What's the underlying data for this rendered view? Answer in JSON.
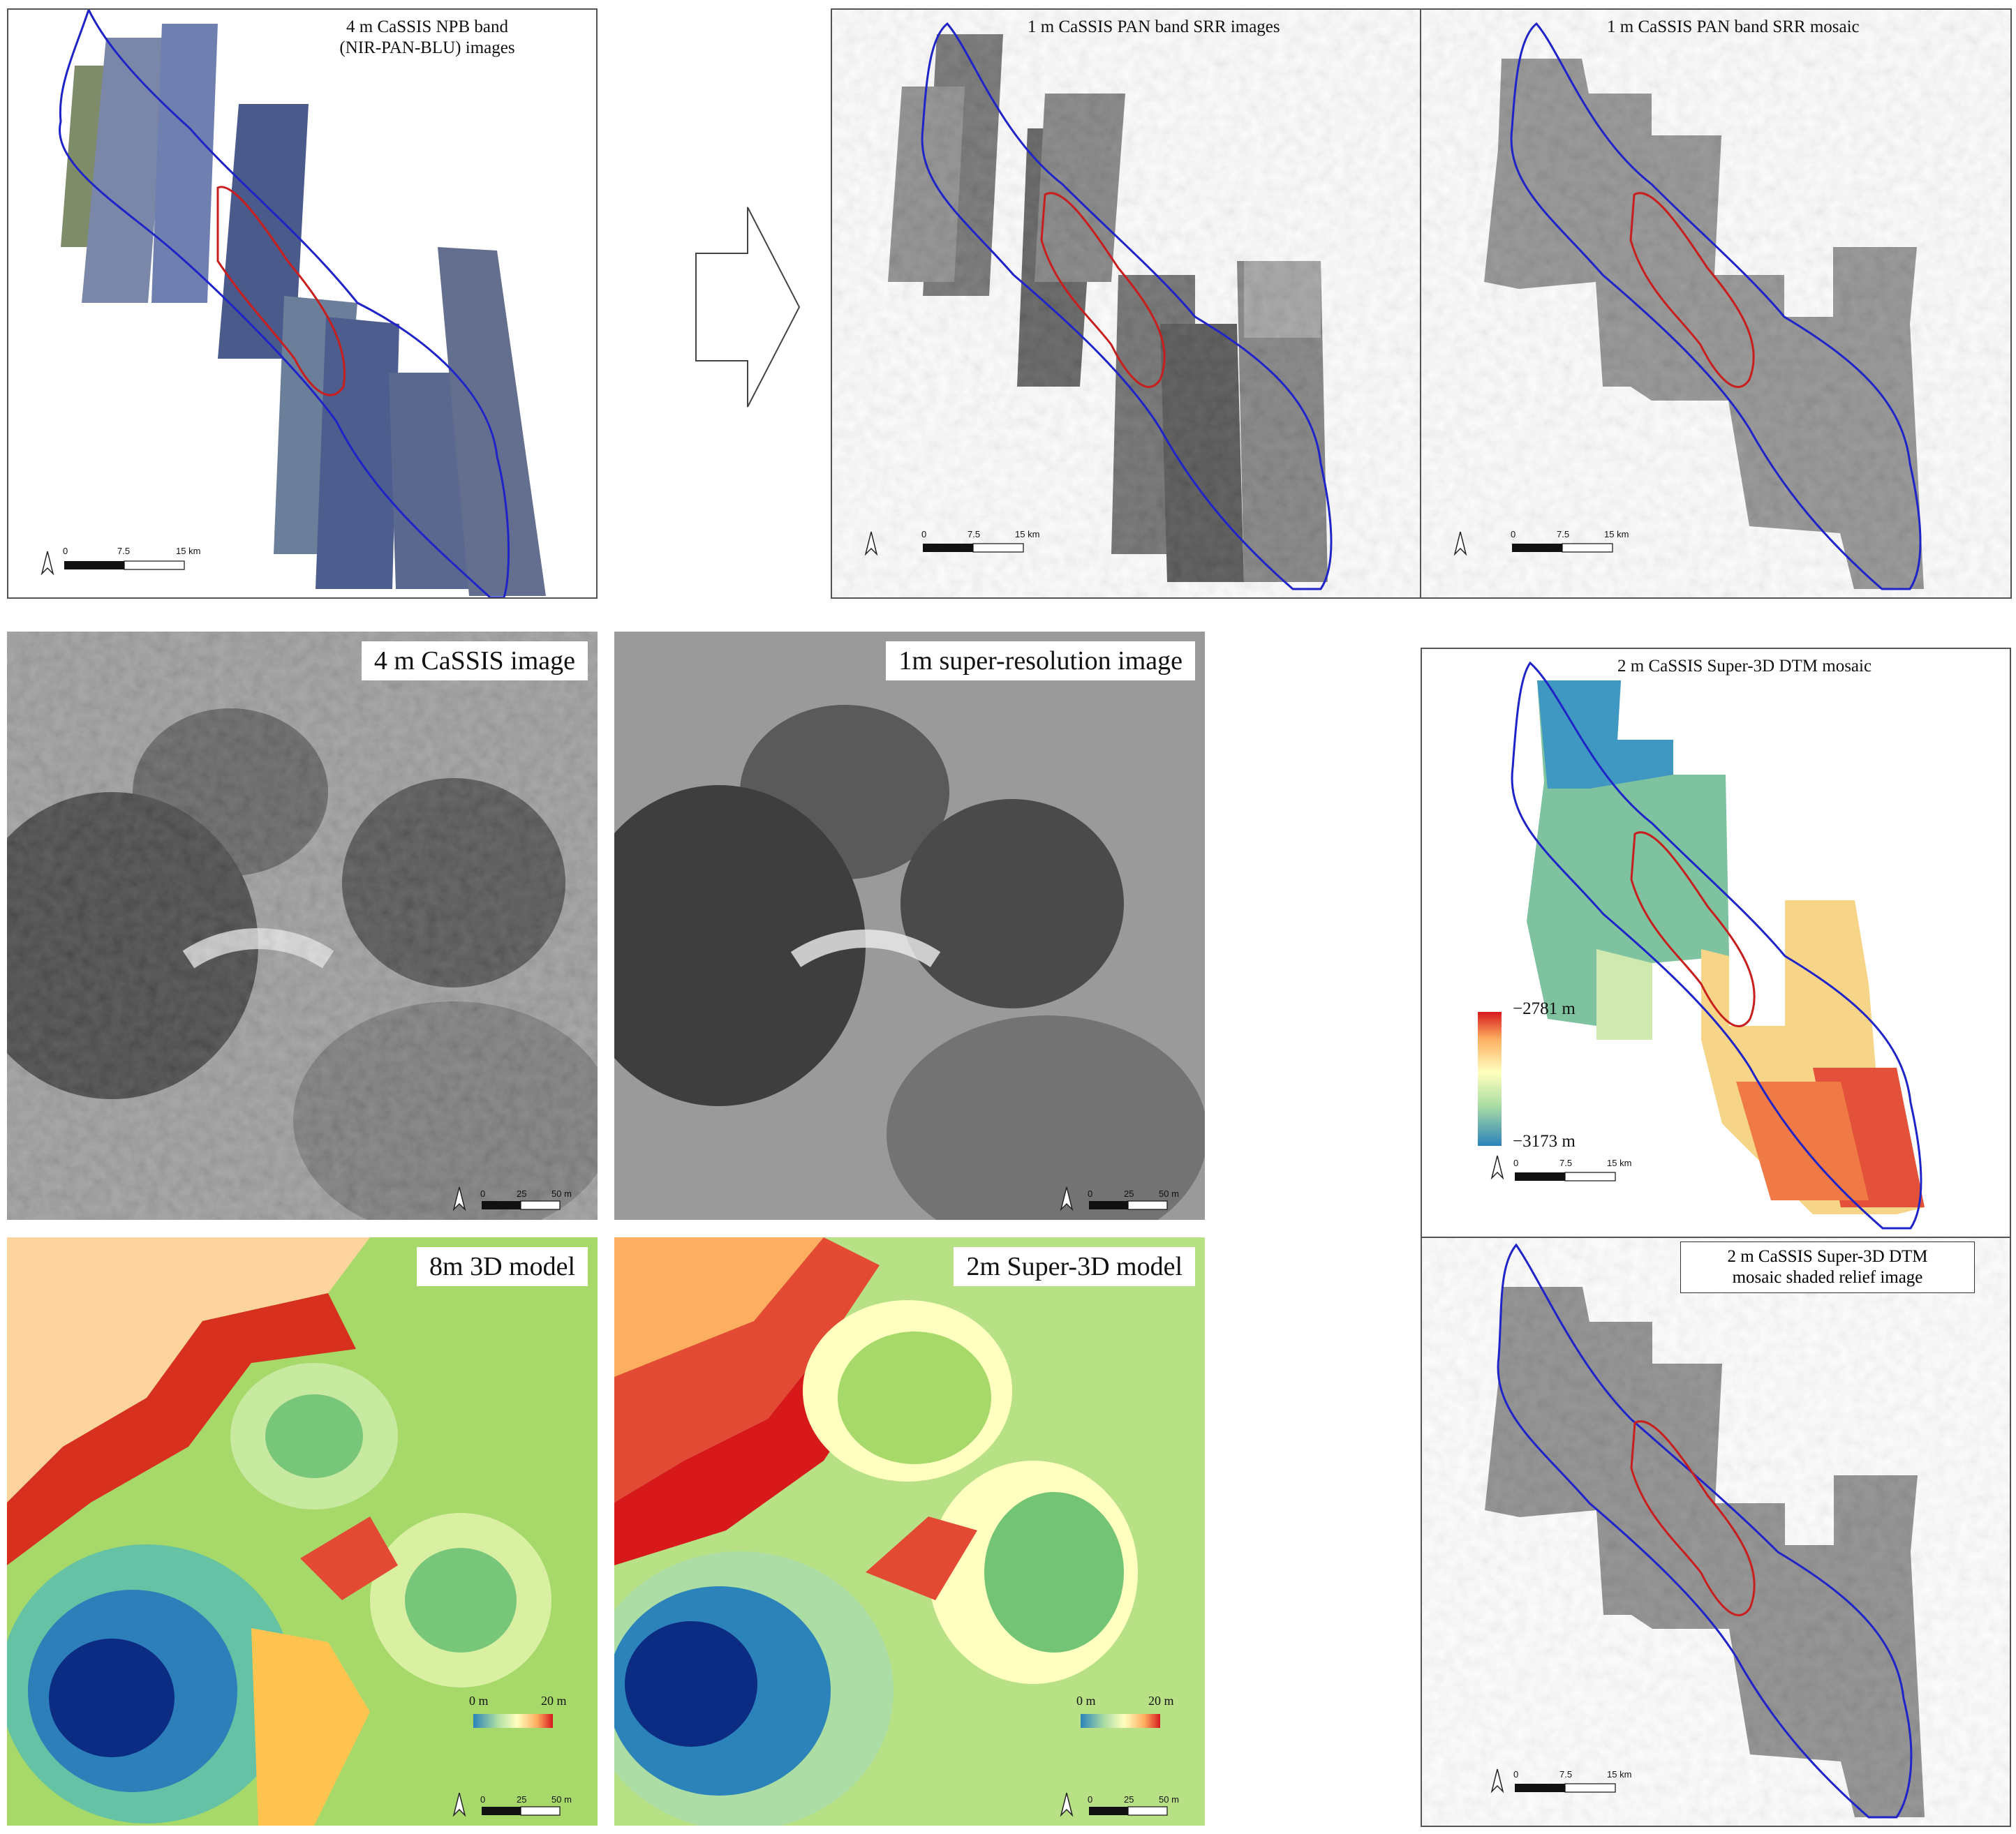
{
  "panels": {
    "npb": {
      "title_line1": "4 m CaSSIS NPB band",
      "title_line2": "(NIR-PAN-BLU) images"
    },
    "srr_images": {
      "title": "1 m CaSSIS PAN band SRR images"
    },
    "srr_mosaic": {
      "title": "1 m CaSSIS PAN band SRR mosaic"
    },
    "cassis4m": {
      "title": "4 m CaSSIS image"
    },
    "superres": {
      "title": "1m super-resolution image"
    },
    "dtm_mosaic": {
      "title": "2 m CaSSIS Super-3D DTM mosaic"
    },
    "model8m": {
      "title": "8m 3D model"
    },
    "model2m": {
      "title": "2m Super-3D model"
    },
    "shaded": {
      "title_line1": "2 m CaSSIS Super-3D DTM",
      "title_line2": "mosaic shaded relief image"
    }
  },
  "scalebars": {
    "km": {
      "t0": "0",
      "t1": "7.5",
      "t2": "15 km"
    },
    "m": {
      "t0": "0",
      "t1": "25",
      "t2": "50 m"
    }
  },
  "legend_dtm": {
    "max": "−2781 m",
    "min": "−3173 m"
  },
  "legend_model": {
    "min": "0 m",
    "max": "20 m"
  },
  "colors": {
    "outline_blue": "#1f24c8",
    "outline_red": "#c81e1e",
    "frame": "#555555"
  }
}
